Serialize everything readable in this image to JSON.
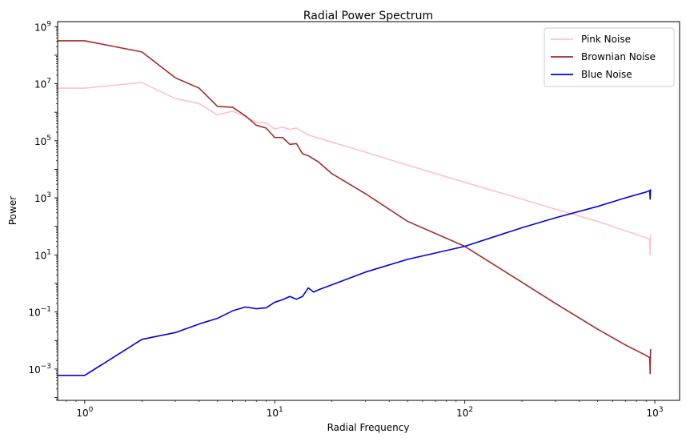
{
  "chart_data": {
    "type": "line",
    "title": "Radial Power Spectrum",
    "xlabel": "Radial Frequency",
    "ylabel": "Power",
    "xscale": "log",
    "yscale": "log",
    "xlim": [
      0.72,
      1350
    ],
    "ylim": [
      8e-05,
      1500000000
    ],
    "grid": false,
    "legend_position": "top-right",
    "x_ticks": [
      {
        "value": 1,
        "base": "10",
        "exp": "0"
      },
      {
        "value": 10,
        "base": "10",
        "exp": "1"
      },
      {
        "value": 100,
        "base": "10",
        "exp": "2"
      },
      {
        "value": 1000,
        "base": "10",
        "exp": "3"
      }
    ],
    "y_ticks": [
      {
        "value": 0.001,
        "base": "10",
        "exp": "−3"
      },
      {
        "value": 0.1,
        "base": "10",
        "exp": "−1"
      },
      {
        "value": 10,
        "base": "10",
        "exp": "1"
      },
      {
        "value": 1000,
        "base": "10",
        "exp": "3"
      },
      {
        "value": 100000,
        "base": "10",
        "exp": "5"
      },
      {
        "value": 10000000,
        "base": "10",
        "exp": "7"
      },
      {
        "value": 1000000000,
        "base": "10",
        "exp": "9"
      }
    ],
    "series": [
      {
        "name": "Pink Noise",
        "color": "#ffc0cb",
        "x": [
          0.72,
          1,
          2,
          3,
          4,
          5,
          6,
          7,
          8,
          9,
          10,
          11,
          12,
          13,
          15,
          20,
          30,
          50,
          100,
          200,
          300,
          500,
          700,
          900,
          940,
          945,
          950
        ],
        "y": [
          7000000,
          7000000,
          11000000,
          3000000,
          2000000,
          800000,
          1100000,
          700000,
          450000,
          420000,
          260000,
          300000,
          250000,
          280000,
          160000,
          90000,
          40000,
          14000,
          3500,
          900,
          400,
          150,
          70,
          40,
          35,
          10,
          50
        ]
      },
      {
        "name": "Brownian Noise",
        "color": "#a52a2a",
        "x": [
          0.72,
          1,
          2,
          3,
          4,
          5,
          6,
          7,
          8,
          9,
          10,
          11,
          12,
          13,
          14,
          15,
          17,
          20,
          30,
          50,
          100,
          200,
          300,
          500,
          700,
          900,
          940,
          945,
          950
        ],
        "y": [
          320000000,
          320000000,
          130000000,
          16000000,
          7000000,
          1600000,
          1500000,
          750000,
          350000,
          280000,
          130000,
          130000,
          75000,
          80000,
          35000,
          30000,
          18000,
          7000,
          1400,
          150,
          20,
          1.1,
          0.2,
          0.025,
          0.007,
          0.003,
          0.0025,
          0.0007,
          0.005
        ]
      },
      {
        "name": "Blue Noise",
        "color": "#0000dd",
        "x": [
          0.72,
          1,
          2,
          3,
          4,
          5,
          6,
          7,
          8,
          9,
          10,
          11,
          12,
          13,
          14,
          15,
          16,
          17,
          20,
          30,
          50,
          100,
          200,
          300,
          500,
          700,
          900,
          940,
          945,
          950
        ],
        "y": [
          0.0006,
          0.0006,
          0.011,
          0.019,
          0.038,
          0.06,
          0.11,
          0.15,
          0.13,
          0.14,
          0.22,
          0.27,
          0.35,
          0.28,
          0.35,
          0.7,
          0.5,
          0.6,
          0.9,
          2.5,
          7,
          20,
          90,
          200,
          500,
          1000,
          1600,
          1800,
          900,
          2000
        ]
      }
    ]
  }
}
